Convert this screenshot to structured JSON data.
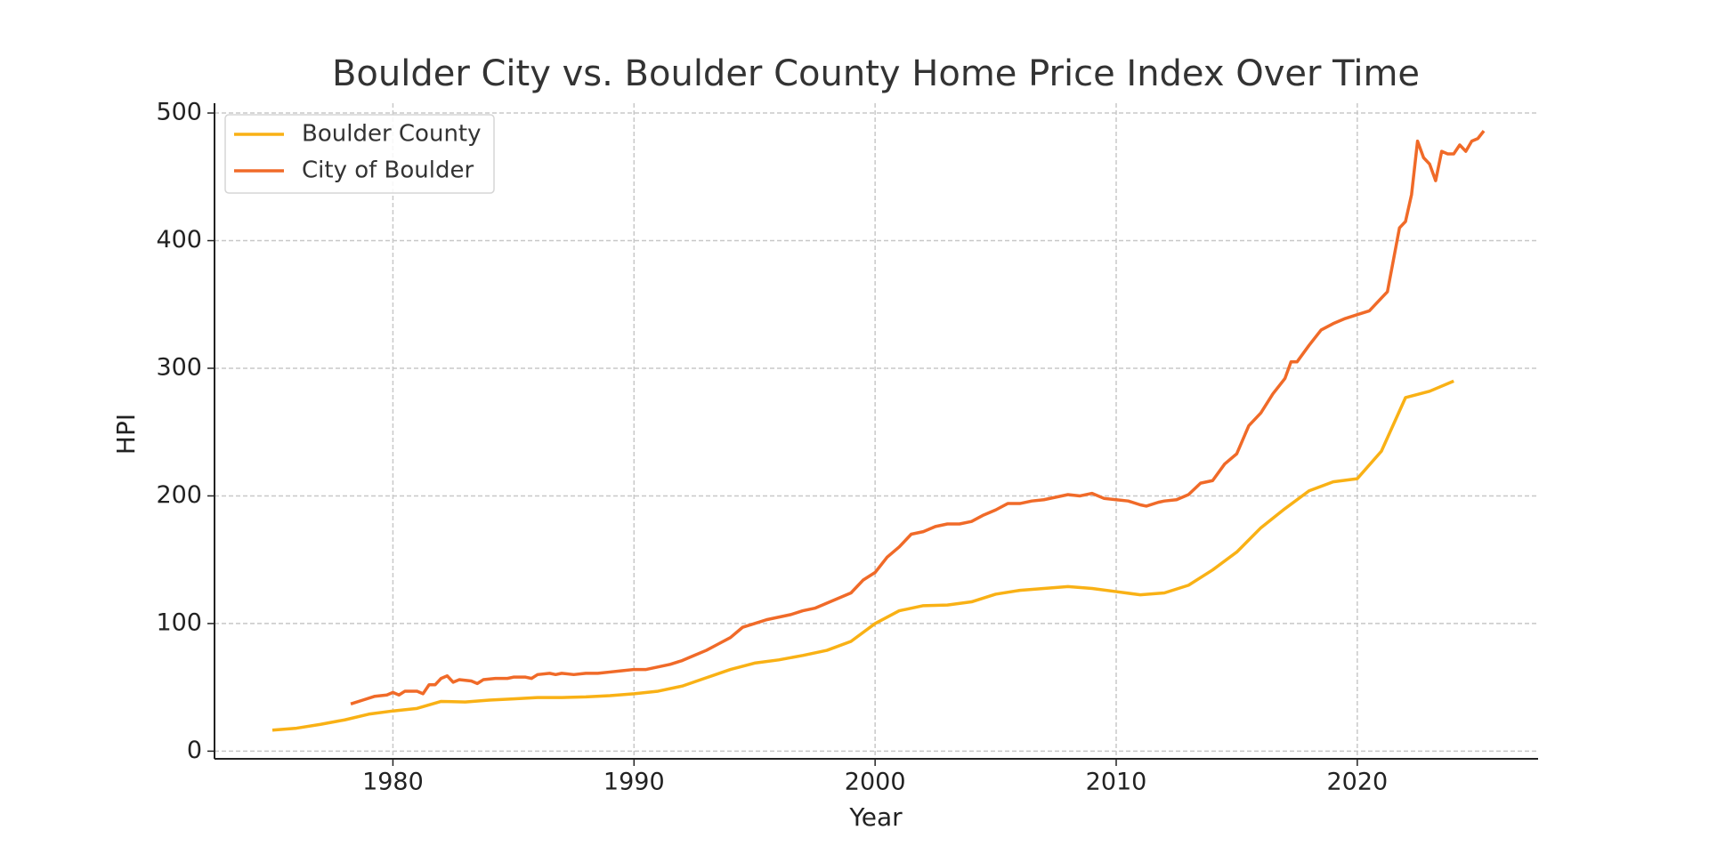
{
  "chart_data": {
    "type": "line",
    "title": "Boulder City vs. Boulder County Home Price Index Over Time",
    "xlabel": "Year",
    "ylabel": "HPI",
    "xlim": [
      1972.6,
      2027.5
    ],
    "ylim": [
      -6,
      507.7
    ],
    "xticks": [
      1980,
      1990,
      2000,
      2010,
      2020
    ],
    "yticks": [
      0,
      100,
      200,
      300,
      400,
      500
    ],
    "grid": true,
    "legend": "upper left",
    "series": [
      {
        "name": "Boulder County",
        "color": "#f9b115",
        "x": [
          1975,
          1976,
          1977,
          1978,
          1979,
          1980,
          1981,
          1982,
          1983,
          1984,
          1985,
          1986,
          1987,
          1988,
          1989,
          1990,
          1991,
          1992,
          1993,
          1994,
          1995,
          1996,
          1997,
          1998,
          1999,
          2000,
          2001,
          2002,
          2003,
          2004,
          2005,
          2006,
          2007,
          2008,
          2009,
          2010,
          2011,
          2012,
          2013,
          2014,
          2015,
          2016,
          2017,
          2018,
          2019,
          2020,
          2021,
          2022,
          2023,
          2024
        ],
        "values": [
          16.5,
          18,
          21,
          24.5,
          29,
          31.5,
          33.5,
          39,
          38.5,
          40,
          41,
          42,
          42,
          42.5,
          43.5,
          45,
          47,
          51,
          57.5,
          64,
          69,
          71.5,
          75,
          79,
          86,
          100,
          110,
          114,
          114.5,
          117,
          123,
          126,
          127.5,
          129,
          127.5,
          125,
          122.5,
          124,
          130,
          142,
          156,
          175,
          190,
          204,
          211,
          213.5,
          235,
          277,
          282,
          290
        ]
      },
      {
        "name": "City of Boulder",
        "color": "#f06a28",
        "x": [
          1978.25,
          1978.75,
          1979.25,
          1979.75,
          1980.0,
          1980.25,
          1980.5,
          1981.0,
          1981.25,
          1981.5,
          1981.75,
          1982.0,
          1982.25,
          1982.5,
          1982.75,
          1983.25,
          1983.5,
          1983.75,
          1984.25,
          1984.75,
          1985.0,
          1985.5,
          1985.75,
          1986.0,
          1986.5,
          1986.75,
          1987.0,
          1987.5,
          1988.0,
          1988.5,
          1989.0,
          1989.5,
          1990.0,
          1990.5,
          1991.0,
          1991.5,
          1992.0,
          1992.5,
          1993.0,
          1993.5,
          1994.0,
          1994.5,
          1995.0,
          1995.5,
          1996.0,
          1996.5,
          1997.0,
          1997.5,
          1998.0,
          1998.5,
          1999.0,
          1999.5,
          2000.0,
          2000.5,
          2001.0,
          2001.5,
          2002.0,
          2002.5,
          2003.0,
          2003.5,
          2004.0,
          2004.5,
          2005.0,
          2005.5,
          2006.0,
          2006.5,
          2007.0,
          2007.5,
          2008.0,
          2008.5,
          2009.0,
          2009.5,
          2010.0,
          2010.5,
          2011.0,
          2011.25,
          2011.75,
          2012.0,
          2012.5,
          2013.0,
          2013.5,
          2014.0,
          2014.5,
          2015.0,
          2015.5,
          2016.0,
          2016.5,
          2017.0,
          2017.25,
          2017.5,
          2018.0,
          2018.5,
          2019.0,
          2019.5,
          2020.0,
          2020.5,
          2021.0,
          2021.25,
          2021.5,
          2021.75,
          2022.0,
          2022.25,
          2022.5,
          2022.75,
          2023.0,
          2023.25,
          2023.5,
          2023.75,
          2024.0,
          2024.25,
          2024.5,
          2024.75,
          2025.0,
          2025.25
        ],
        "values": [
          37,
          40,
          43,
          44,
          46,
          44,
          47,
          47,
          45,
          52,
          52,
          57,
          59,
          54,
          56,
          55,
          53,
          56,
          57,
          57,
          58,
          58,
          57,
          60,
          61,
          60,
          61,
          60,
          61,
          61,
          62,
          63,
          64,
          64,
          66,
          68,
          71,
          75,
          79,
          84,
          89,
          97,
          100,
          103,
          105,
          107,
          110,
          112,
          116,
          120,
          124,
          134,
          140,
          152,
          160,
          170,
          172,
          176,
          178,
          178,
          180,
          185,
          189,
          194,
          194,
          196,
          197,
          199,
          201,
          200,
          202,
          198,
          197,
          196,
          193,
          192,
          195,
          196,
          197,
          201,
          210,
          212,
          225,
          233,
          255,
          265,
          280,
          292,
          305,
          305,
          318,
          330,
          335,
          339,
          342,
          345,
          355,
          360,
          385,
          410,
          415,
          436,
          478,
          465,
          460,
          447,
          470,
          468,
          468,
          475,
          470,
          478,
          480,
          486
        ]
      }
    ]
  }
}
